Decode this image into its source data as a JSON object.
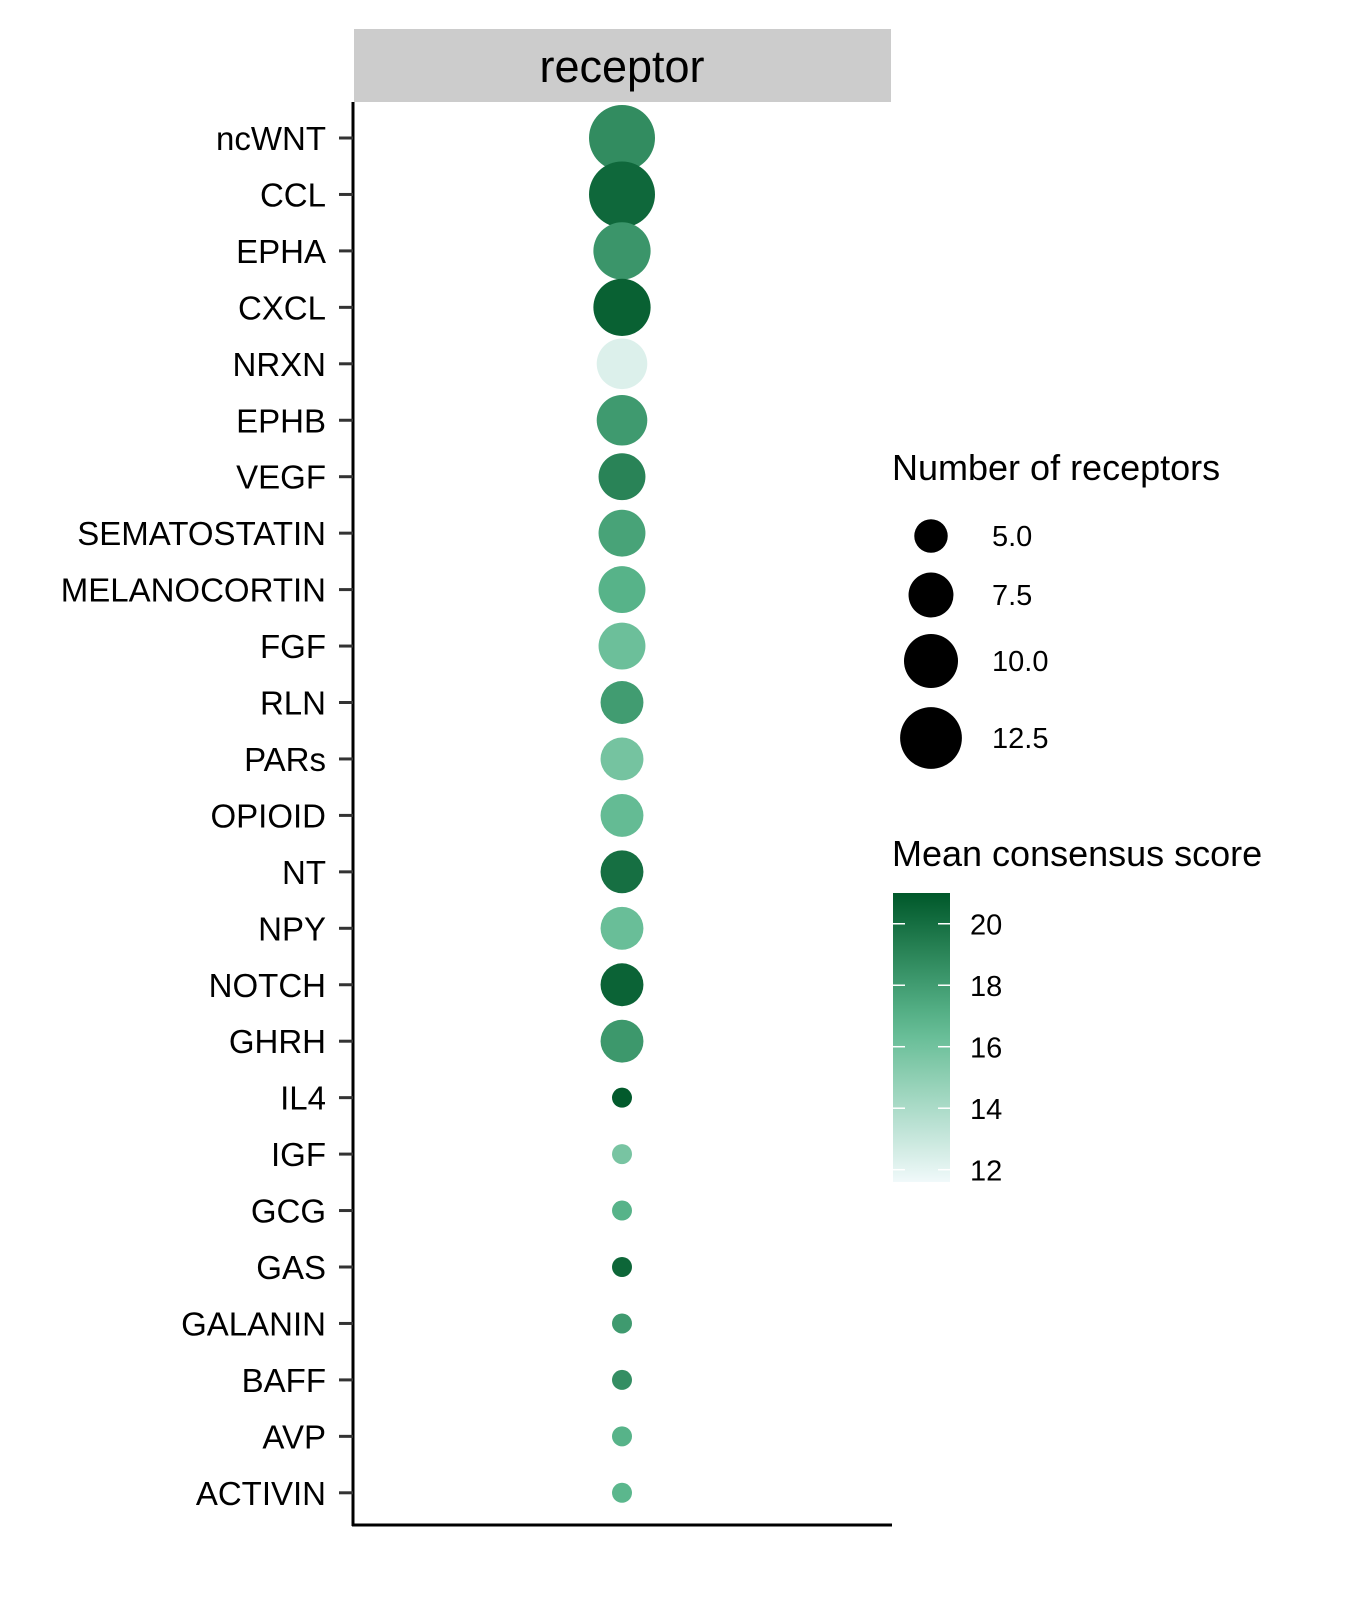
{
  "chart_data": {
    "type": "scatter",
    "facet_label": "receptor",
    "categories": [
      "ncWNT",
      "CCL",
      "EPHA",
      "CXCL",
      "NRXN",
      "EPHB",
      "VEGF",
      "SEMATOSTATIN",
      "MELANOCORTIN",
      "FGF",
      "RLN",
      "PARs",
      "OPIOID",
      "NT",
      "NPY",
      "NOTCH",
      "GHRH",
      "IL4",
      "IGF",
      "GCG",
      "GAS",
      "GALANIN",
      "BAFF",
      "AVP",
      "ACTIVIN"
    ],
    "series": [
      {
        "size_values": [
          14,
          14,
          11,
          11,
          9,
          9,
          8,
          8,
          8,
          8,
          7,
          7,
          7,
          7,
          7,
          7,
          7,
          3,
          3,
          3,
          3,
          3,
          3,
          3,
          3
        ],
        "color_values": [
          18.7,
          20.3,
          18.3,
          20.6,
          12.3,
          18.1,
          19.1,
          17.7,
          17.0,
          16.2,
          18.0,
          15.9,
          16.5,
          20.0,
          16.3,
          20.5,
          18.2,
          20.9,
          15.8,
          17.0,
          20.4,
          18.1,
          18.6,
          17.0,
          16.8
        ]
      }
    ],
    "size_legend": {
      "title": "Number of receptors",
      "breaks": [
        "5.0",
        "7.5",
        "10.0",
        "12.5"
      ],
      "values": [
        5.0,
        7.5,
        10.0,
        12.5
      ]
    },
    "color_legend": {
      "title": "Mean consensus score",
      "ticks": [
        "20",
        "18",
        "16",
        "14",
        "12"
      ],
      "tick_values": [
        20,
        18,
        16,
        14,
        12
      ],
      "range": [
        11.6,
        21.0
      ],
      "low_color": "#f0f9fa",
      "mid_color": "#5cb88e",
      "high_color": "#00582a"
    },
    "size_range": [
      3,
      14
    ],
    "facet_bg_color": "#cccccc",
    "legend_position": "right",
    "grid": false
  }
}
